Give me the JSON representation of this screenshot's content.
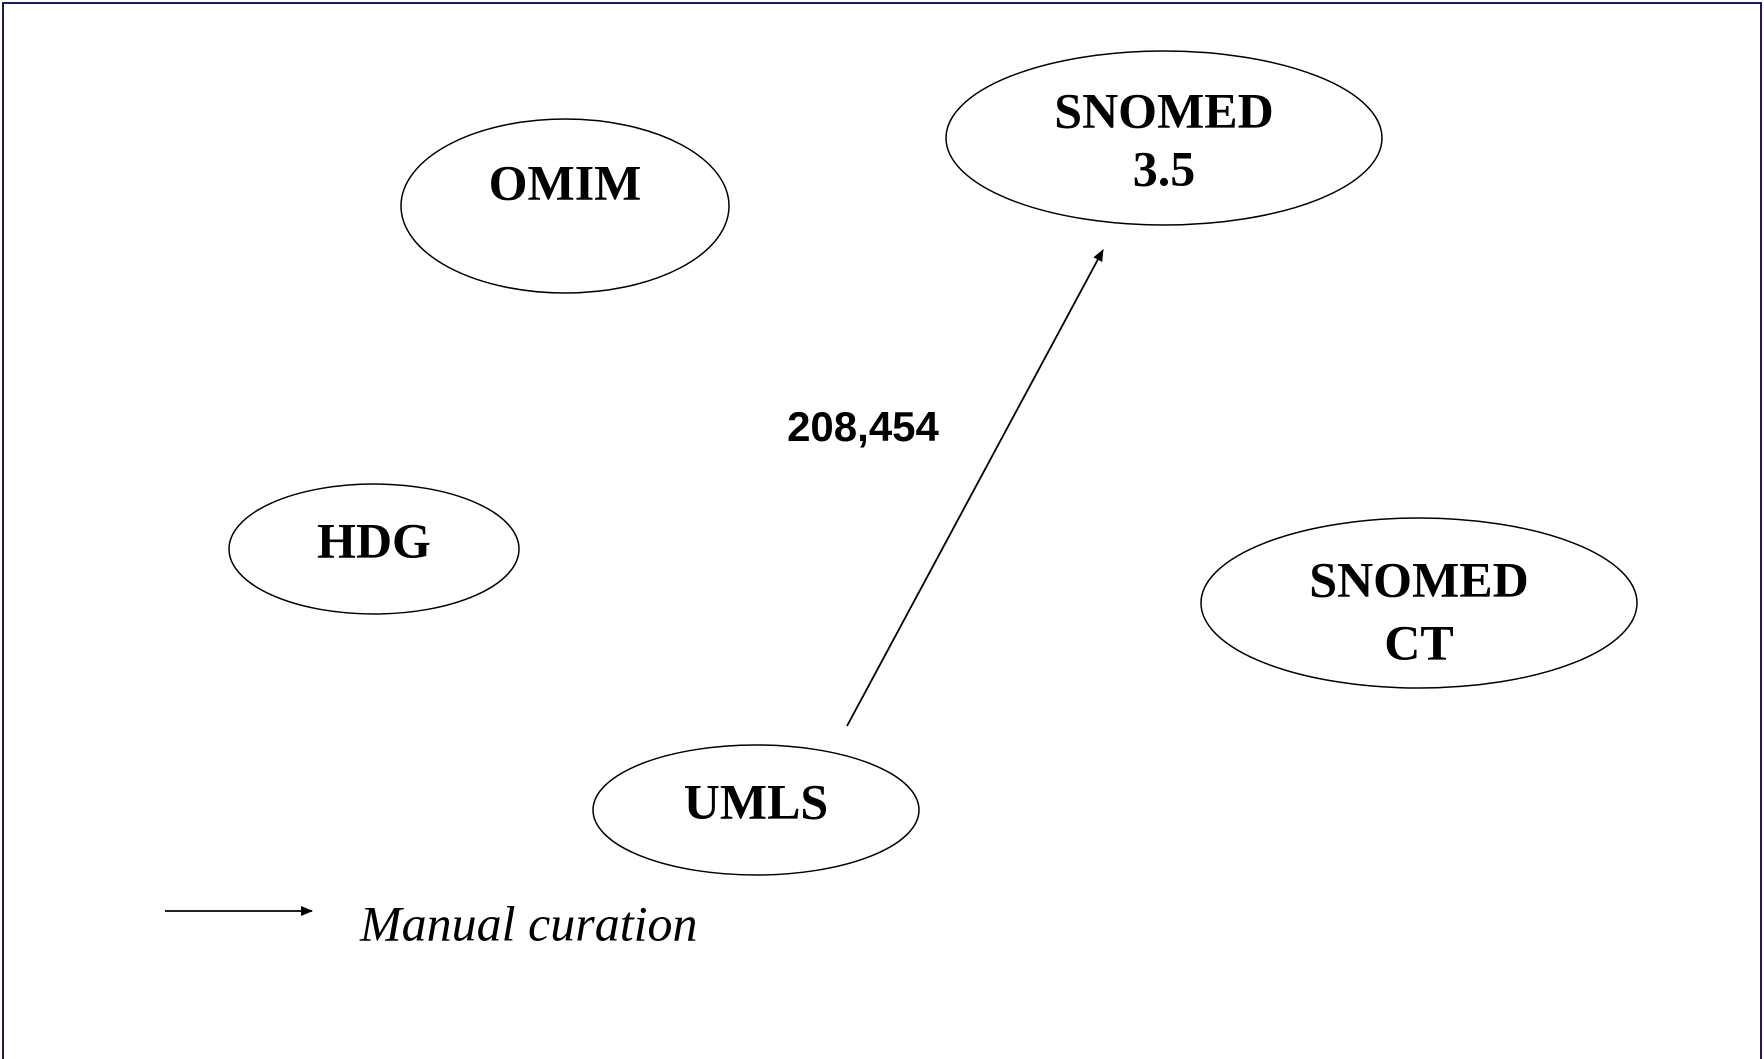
{
  "nodes": [
    {
      "lines": [
        "OMIM"
      ]
    },
    {
      "lines": [
        "HDG"
      ]
    },
    {
      "lines": [
        "UMLS"
      ]
    },
    {
      "lines": [
        "SNOMED",
        "3.5"
      ]
    },
    {
      "lines": [
        "SNOMED",
        "CT"
      ]
    }
  ],
  "edges": [
    {
      "label": "208,454"
    }
  ],
  "legend": {
    "label": "Manual curation"
  }
}
